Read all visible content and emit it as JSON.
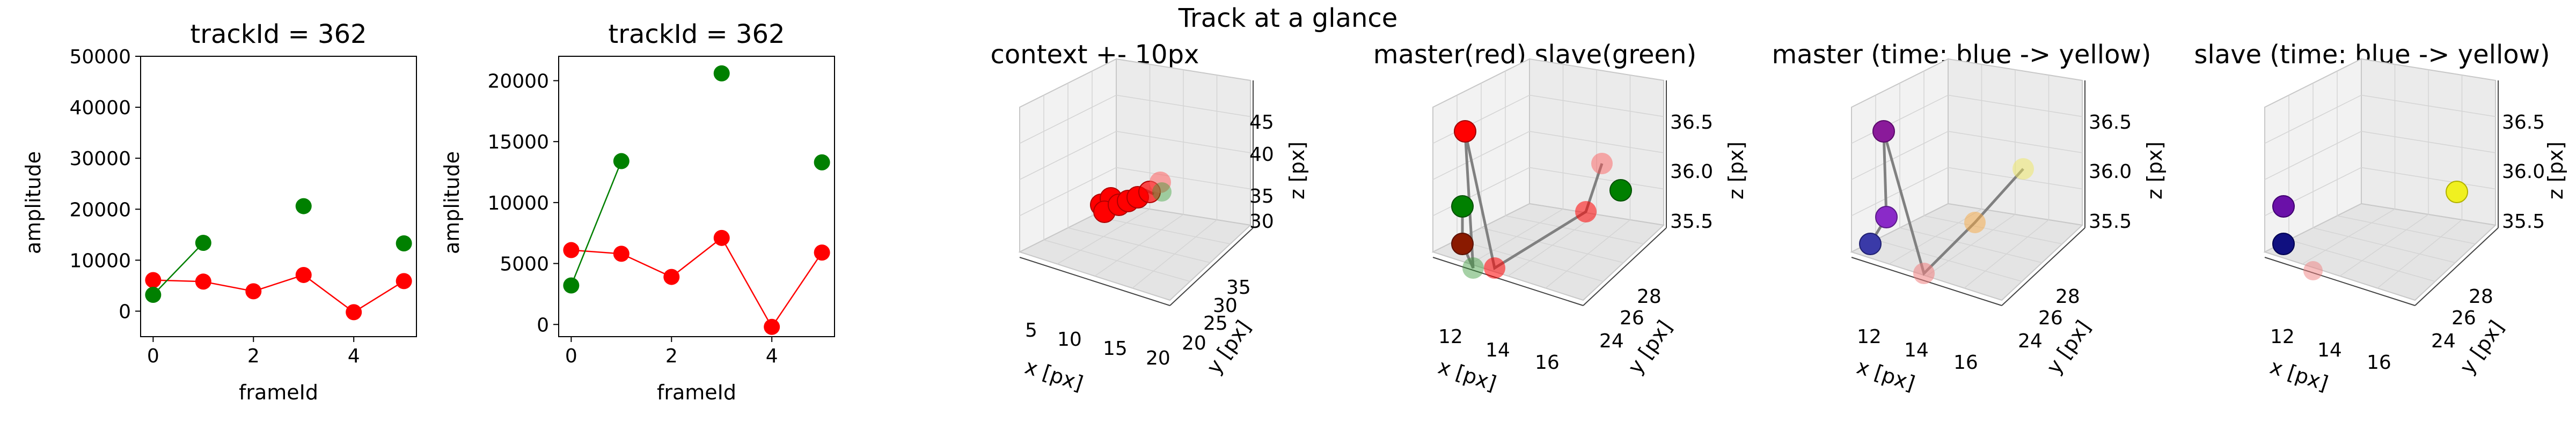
{
  "figure": {
    "suptitle": "Track at a glance"
  },
  "colors": {
    "red": "#ff0000",
    "green": "#008000",
    "pane": "#f2f2f2",
    "grid": "#d4d4d4",
    "track_line": "#808080"
  },
  "chart_data": [
    {
      "type": "line",
      "title": "trackId = 362",
      "xlabel": "frameId",
      "ylabel": "amplitude",
      "xlim": [
        -0.25,
        5.25
      ],
      "ylim": [
        -5000,
        50000
      ],
      "xticks": [
        "0",
        "2",
        "4"
      ],
      "xtick_values": [
        0,
        2,
        4
      ],
      "yticks": [
        "0",
        "10000",
        "20000",
        "30000",
        "40000",
        "50000"
      ],
      "ytick_values": [
        0,
        10000,
        20000,
        30000,
        40000,
        50000
      ],
      "series": [
        {
          "color": "#ff0000",
          "marker_only_x": [],
          "x": [
            0,
            1,
            2,
            3,
            4,
            5
          ],
          "y": [
            6100,
            5800,
            3900,
            7100,
            -200,
            5900
          ]
        },
        {
          "color": "#008000",
          "line_x": [
            0,
            1
          ],
          "line_y": [
            3200,
            13400
          ],
          "x": [
            0,
            1,
            3,
            5
          ],
          "y": [
            3200,
            13400,
            20600,
            13300
          ]
        }
      ]
    },
    {
      "type": "line",
      "title": "trackId = 362",
      "xlabel": "frameId",
      "ylabel": "amplitude",
      "xlim": [
        -0.25,
        5.25
      ],
      "ylim": [
        -1000,
        22000
      ],
      "xticks": [
        "0",
        "2",
        "4"
      ],
      "xtick_values": [
        0,
        2,
        4
      ],
      "yticks": [
        "0",
        "5000",
        "10000",
        "15000",
        "20000"
      ],
      "ytick_values": [
        0,
        5000,
        10000,
        15000,
        20000
      ],
      "series": [
        {
          "color": "#ff0000",
          "x": [
            0,
            1,
            2,
            3,
            4,
            5
          ],
          "y": [
            6100,
            5800,
            3900,
            7100,
            -200,
            5900
          ]
        },
        {
          "color": "#008000",
          "line_x": [
            0,
            1
          ],
          "line_y": [
            3200,
            13400
          ],
          "x": [
            0,
            1,
            3,
            5
          ],
          "y": [
            3200,
            13400,
            20600,
            13300
          ]
        }
      ]
    },
    {
      "type": "scatter",
      "projection": "3d",
      "title": "context +- 10px",
      "xlabel": "x [px]",
      "ylabel": "y [px]",
      "zlabel": "z [px]",
      "xticks": [
        "5",
        "10",
        "15",
        "20"
      ],
      "yticks": [
        "20",
        "25",
        "30",
        "35"
      ],
      "zticks": [
        "30",
        "35",
        "40",
        "45"
      ]
    },
    {
      "type": "scatter",
      "projection": "3d",
      "title": "master(red) slave(green)",
      "xlabel": "x [px]",
      "ylabel": "y [px]",
      "zlabel": "z [px]",
      "xticks": [
        "12",
        "14",
        "16"
      ],
      "yticks": [
        "24",
        "26",
        "28"
      ],
      "zticks": [
        "35.5",
        "36.0",
        "36.5"
      ]
    },
    {
      "type": "scatter",
      "projection": "3d",
      "title": "master (time: blue -> yellow)",
      "xlabel": "x [px]",
      "ylabel": "y [px]",
      "zlabel": "z [px]",
      "xticks": [
        "12",
        "14",
        "16"
      ],
      "yticks": [
        "24",
        "26",
        "28"
      ],
      "zticks": [
        "35.5",
        "36.0",
        "36.5"
      ]
    },
    {
      "type": "scatter",
      "projection": "3d",
      "title": "slave (time: blue -> yellow)",
      "xlabel": "x [px]",
      "ylabel": "y [px]",
      "zlabel": "z [px]",
      "xticks": [
        "12",
        "14",
        "16"
      ],
      "yticks": [
        "24",
        "26",
        "28"
      ],
      "zticks": [
        "35.5",
        "36.0",
        "36.5"
      ]
    }
  ]
}
